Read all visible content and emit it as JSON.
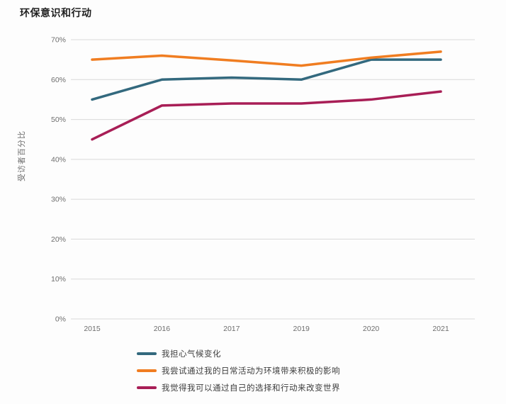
{
  "title": "环保意识和行动",
  "colors": {
    "grid": "#d9d9d9",
    "axis_text": "#6e6e6e",
    "title_text": "#1f1f1f",
    "series_teal": "#33697e",
    "series_orange": "#f07d21",
    "series_crimson": "#a81e56"
  },
  "chart_data": {
    "type": "line",
    "title": "环保意识和行动",
    "xlabel": "",
    "ylabel": "受访者百分比",
    "categories": [
      "2015",
      "2016",
      "2017",
      "2019",
      "2020",
      "2021"
    ],
    "y_ticks": [
      "0%",
      "10%",
      "20%",
      "30%",
      "40%",
      "50%",
      "60%",
      "70%"
    ],
    "ylim": [
      0,
      70
    ],
    "grid": true,
    "legend_position": "bottom-left",
    "series": [
      {
        "name": "我担心气候变化",
        "color": "#33697e",
        "values": [
          55,
          60,
          60.5,
          60,
          65,
          65
        ]
      },
      {
        "name": "我尝试通过我的日常活动为环境带来积极的影响",
        "color": "#f07d21",
        "values": [
          65,
          66,
          64.8,
          63.5,
          65.5,
          67
        ]
      },
      {
        "name": "我觉得我可以通过自己的选择和行动来改变世界",
        "color": "#a81e56",
        "values": [
          45,
          53.5,
          54,
          54,
          55,
          57
        ]
      }
    ]
  }
}
